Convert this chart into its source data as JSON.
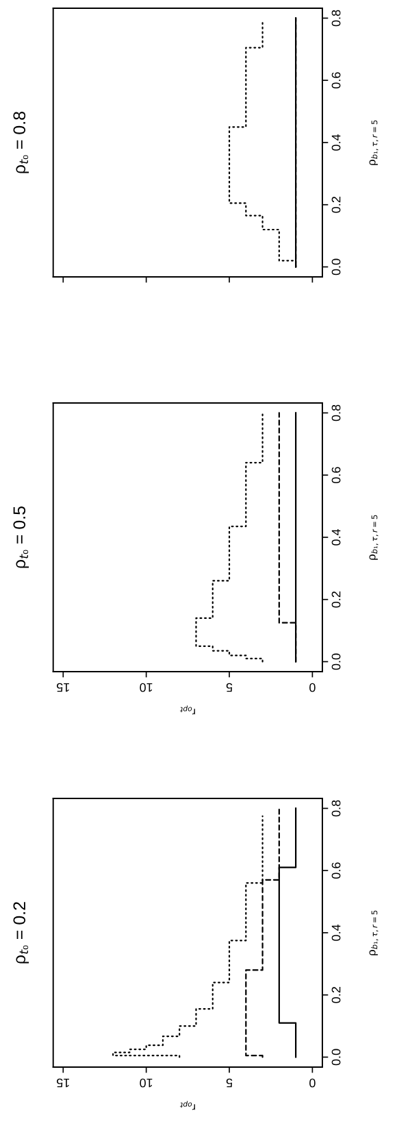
{
  "chart_data": [
    {
      "type": "line",
      "title": "ρ$_{t₀}$ = 0.8",
      "ylabel": "ρ$_{b₁,τ,r=5}$",
      "xlim": [
        15.6,
        -0.6
      ],
      "ylim": [
        -0.032,
        0.832
      ],
      "xticks": [
        0,
        5,
        10,
        15
      ],
      "yticks": [
        {
          "value": 0,
          "label": "0.0"
        },
        {
          "value": 0.2,
          "label": "0.2"
        },
        {
          "value": 0.4,
          "label": "0.4"
        },
        {
          "value": 0.6,
          "label": "0.6"
        },
        {
          "value": 0.8,
          "label": "0.8"
        }
      ],
      "tick_labels": "y",
      "series": [
        {
          "color": "#000000",
          "line_style": "solid",
          "x": [
            1,
            1
          ],
          "values": [
            0,
            0.8
          ]
        },
        {
          "color": "#000000",
          "line_style": "dashed",
          "x": [
            1,
            1
          ],
          "values": [
            0,
            0.8
          ]
        },
        {
          "color": "#000000",
          "line_style": "dotted",
          "x": [
            1,
            1,
            2,
            2,
            3,
            3,
            4,
            4,
            5,
            5,
            4,
            4,
            3,
            3
          ],
          "values": [
            0,
            0.02,
            0.02,
            0.12,
            0.12,
            0.165,
            0.165,
            0.205,
            0.205,
            0.45,
            0.45,
            0.705,
            0.705,
            0.79
          ]
        }
      ]
    },
    {
      "type": "line",
      "title": "ρ$_{t₀}$ = 0.5",
      "xlabel": "r$_{opt}$",
      "ylabel": "ρ$_{b₁,τ,r=5}$",
      "xlim": [
        15.6,
        -0.6
      ],
      "ylim": [
        -0.032,
        0.832
      ],
      "xticks": [
        0,
        5,
        10,
        15
      ],
      "yticks": [
        {
          "value": 0,
          "label": "0.0"
        },
        {
          "value": 0.2,
          "label": "0.2"
        },
        {
          "value": 0.4,
          "label": "0.4"
        },
        {
          "value": 0.6,
          "label": "0.6"
        },
        {
          "value": 0.8,
          "label": "0.8"
        }
      ],
      "series": [
        {
          "color": "#000000",
          "line_style": "solid",
          "x": [
            1,
            1
          ],
          "values": [
            0,
            0.8
          ]
        },
        {
          "color": "#000000",
          "line_style": "dashed",
          "x": [
            1,
            1,
            2,
            2
          ],
          "values": [
            0,
            0.125,
            0.125,
            0.8
          ]
        },
        {
          "color": "#000000",
          "line_style": "dotted",
          "x": [
            3,
            3,
            4,
            4,
            5,
            5,
            6,
            6,
            7,
            7,
            6,
            6,
            5,
            5,
            4,
            4,
            3,
            3
          ],
          "values": [
            0,
            0.01,
            0.01,
            0.02,
            0.02,
            0.035,
            0.035,
            0.05,
            0.05,
            0.14,
            0.14,
            0.26,
            0.26,
            0.435,
            0.435,
            0.64,
            0.64,
            0.8
          ]
        }
      ]
    },
    {
      "type": "line",
      "title": "ρ$_{t₀}$ = 0.2",
      "xlabel": "r$_{opt}$",
      "ylabel": "ρ$_{b₁,τ,r=5}$",
      "xlim": [
        15.6,
        -0.6
      ],
      "ylim": [
        -0.032,
        0.832
      ],
      "xticks": [
        0,
        5,
        10,
        15
      ],
      "yticks": [
        {
          "value": 0,
          "label": "0.0"
        },
        {
          "value": 0.2,
          "label": "0.2"
        },
        {
          "value": 0.4,
          "label": "0.4"
        },
        {
          "value": 0.6,
          "label": "0.6"
        },
        {
          "value": 0.8,
          "label": "0.8"
        }
      ],
      "series": [
        {
          "color": "#000000",
          "line_style": "solid",
          "x": [
            1,
            1,
            2,
            2,
            1,
            1
          ],
          "values": [
            0,
            0.11,
            0.11,
            0.61,
            0.61,
            0.8
          ]
        },
        {
          "color": "#000000",
          "line_style": "dashed",
          "x": [
            3,
            3,
            4,
            4,
            3,
            3,
            2,
            2
          ],
          "values": [
            0,
            0.005,
            0.005,
            0.28,
            0.28,
            0.57,
            0.57,
            0.8
          ]
        },
        {
          "color": "#000000",
          "line_style": "dotted",
          "x": [
            8,
            8,
            12,
            12,
            11,
            11,
            10,
            10,
            9,
            9,
            8,
            8,
            7,
            7,
            6,
            6,
            5,
            5,
            4,
            4,
            3,
            3
          ],
          "values": [
            0,
            0.005,
            0.005,
            0.015,
            0.015,
            0.025,
            0.025,
            0.038,
            0.038,
            0.067,
            0.067,
            0.1,
            0.1,
            0.155,
            0.155,
            0.24,
            0.24,
            0.375,
            0.375,
            0.56,
            0.56,
            0.775
          ]
        }
      ]
    }
  ]
}
